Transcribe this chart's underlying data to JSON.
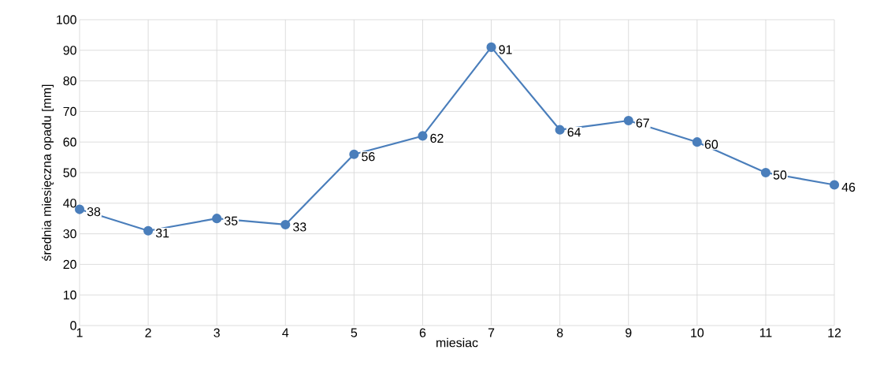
{
  "chart_data": {
    "type": "line",
    "xlabel": "miesiac",
    "ylabel": "średnia miesięczna opadu [mm]",
    "x": [
      1,
      2,
      3,
      4,
      5,
      6,
      7,
      8,
      9,
      10,
      11,
      12
    ],
    "values": [
      38,
      31,
      35,
      33,
      56,
      62,
      91,
      64,
      67,
      60,
      50,
      46
    ],
    "color": "#4a7ebb",
    "marker": "circle",
    "line_style": "solid",
    "data_labels": true,
    "grid": true,
    "xlim": [
      1,
      12
    ],
    "xticks": [
      1,
      2,
      3,
      4,
      5,
      6,
      7,
      8,
      9,
      10,
      11,
      12
    ],
    "ylim": [
      0,
      100
    ],
    "yticks": [
      0,
      10,
      20,
      30,
      40,
      50,
      60,
      70,
      80,
      90,
      100
    ]
  }
}
